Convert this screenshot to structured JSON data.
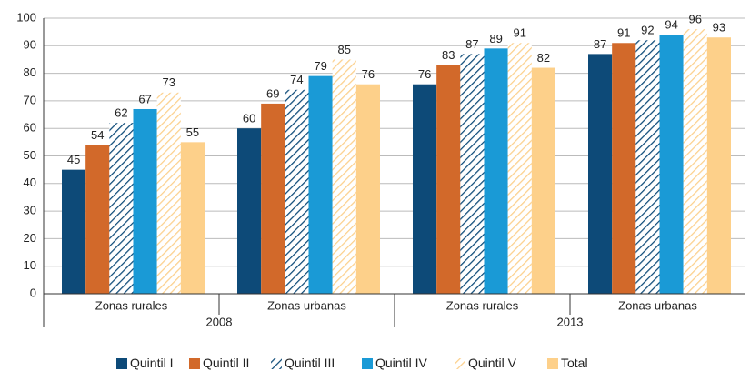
{
  "chart_data": {
    "type": "bar",
    "categories": [
      "Zonas rurales",
      "Zonas urbanas",
      "Zonas rurales",
      "Zonas urbanas"
    ],
    "groups": [
      "2008",
      "2013"
    ],
    "series": [
      {
        "name": "Quintil I",
        "color": "#0d4a78",
        "values": [
          45,
          60,
          76,
          87
        ]
      },
      {
        "name": "Quintil II",
        "color": "#d2692a",
        "values": [
          54,
          69,
          83,
          91
        ]
      },
      {
        "name": "Quintil III",
        "color": "#0d4a78",
        "pattern": "hatch",
        "values": [
          62,
          74,
          87,
          92
        ]
      },
      {
        "name": "Quintil IV",
        "color": "#1a9ad6",
        "values": [
          67,
          79,
          89,
          94
        ]
      },
      {
        "name": "Quintil V",
        "color": "#fcd08c",
        "pattern": "hatch",
        "values": [
          73,
          85,
          91,
          96
        ]
      },
      {
        "name": "Total",
        "color": "#fdd08a",
        "values": [
          55,
          76,
          82,
          93
        ]
      }
    ],
    "ylim": [
      0,
      100
    ],
    "yticks": [
      0,
      10,
      20,
      30,
      40,
      50,
      60,
      70,
      80,
      90,
      100
    ],
    "grid": true
  }
}
